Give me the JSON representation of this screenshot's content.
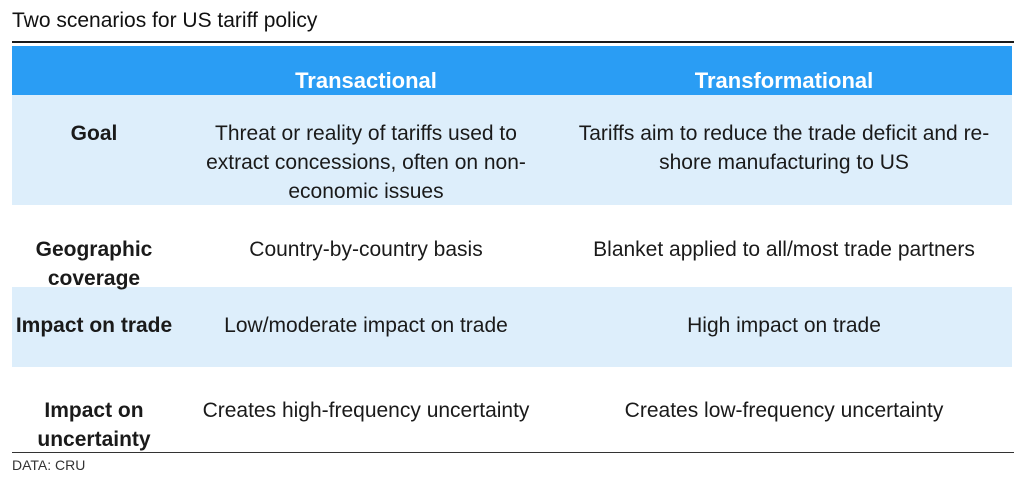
{
  "title": "Two scenarios for US tariff policy",
  "header": {
    "col1": "",
    "col2": "Transactional",
    "col3": "Transformational"
  },
  "rows": [
    {
      "label": "Goal",
      "transactional": "Threat or reality of tariffs used to extract concessions, often on non-economic issues",
      "transformational": "Tariffs aim to reduce the trade deficit and re-shore manufacturing to US"
    },
    {
      "label": "Geographic coverage",
      "transactional": "Country-by-country basis",
      "transformational": "Blanket applied to all/most trade partners"
    },
    {
      "label": "Impact on trade",
      "transactional": "Low/moderate impact on trade",
      "transformational": "High impact on trade"
    },
    {
      "label": "Impact on uncertainty",
      "transactional": "Creates high-frequency uncertainty",
      "transformational": "Creates low-frequency uncertainty"
    }
  ],
  "source": "DATA: CRU",
  "colors": {
    "header_bg": "#2a9df4",
    "shaded_row_bg": "#ddeefb",
    "header_text": "#ffffff"
  }
}
